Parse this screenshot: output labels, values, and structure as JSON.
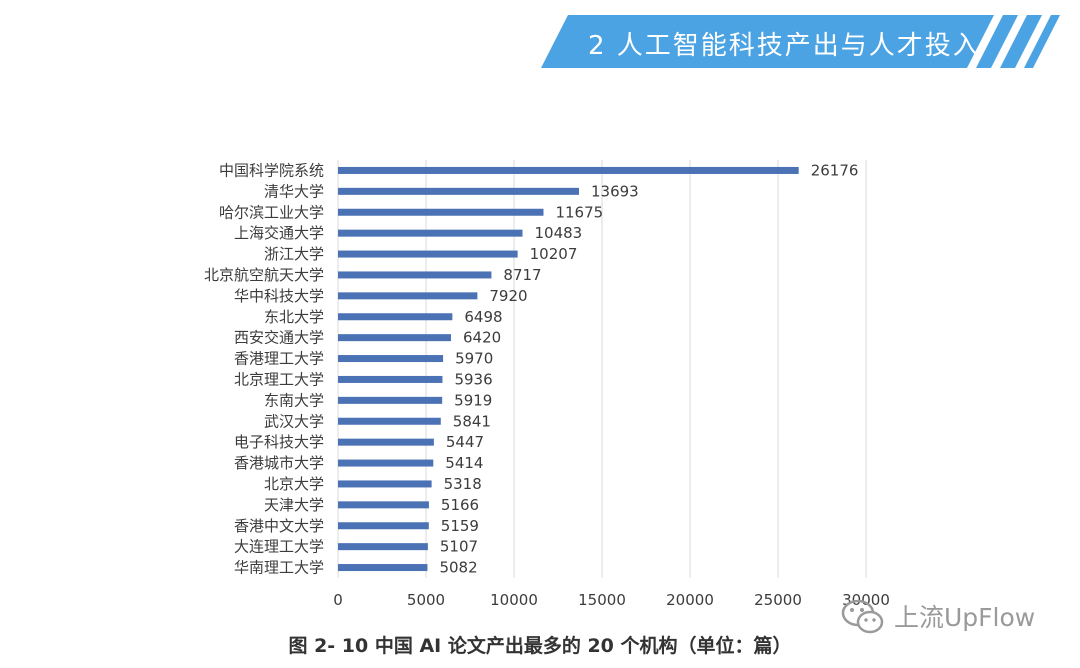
{
  "header": {
    "title": "2 人工智能科技产出与人才投入"
  },
  "chart_data": {
    "type": "bar",
    "orientation": "horizontal",
    "categories": [
      "中国科学院系统",
      "清华大学",
      "哈尔滨工业大学",
      "上海交通大学",
      "浙江大学",
      "北京航空航天大学",
      "华中科技大学",
      "东北大学",
      "西安交通大学",
      "香港理工大学",
      "北京理工大学",
      "东南大学",
      "武汉大学",
      "电子科技大学",
      "香港城市大学",
      "北京大学",
      "天津大学",
      "香港中文大学",
      "大连理工大学",
      "华南理工大学"
    ],
    "values": [
      26176,
      13693,
      11675,
      10483,
      10207,
      8717,
      7920,
      6498,
      6420,
      5970,
      5936,
      5919,
      5841,
      5447,
      5414,
      5318,
      5166,
      5159,
      5107,
      5082
    ],
    "xlim": [
      0,
      30000
    ],
    "xticks": [
      0,
      5000,
      10000,
      15000,
      20000,
      25000,
      30000
    ],
    "grid": true,
    "bar_color": "#4a72b4",
    "title": "图 2- 10  中国 AI 论文产出最多的 20 个机构（单位：篇）"
  },
  "watermark": {
    "text": "上流UpFlow",
    "icon": "wechat-icon"
  },
  "colors": {
    "banner": "#4ba3e3",
    "bar": "#4a72b4",
    "grid": "#d9d9d9"
  }
}
